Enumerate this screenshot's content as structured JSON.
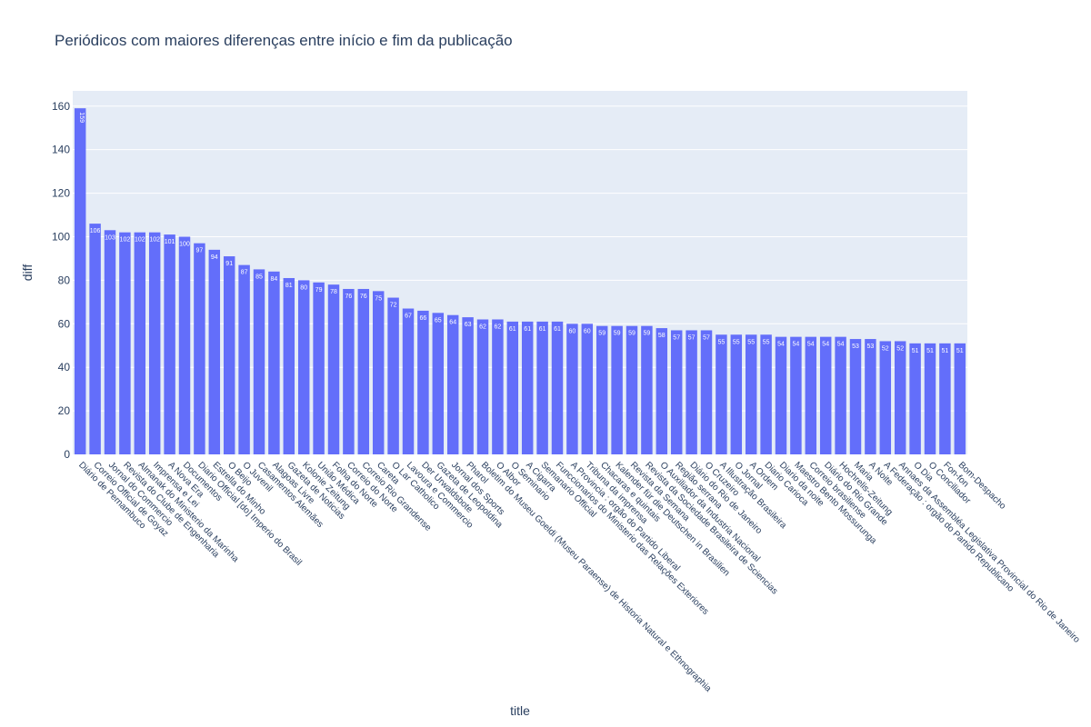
{
  "chart_data": {
    "type": "bar",
    "title": "Periódicos com maiores diferenças entre início e fim da publicação",
    "xlabel": "title",
    "ylabel": "diff",
    "ylim": [
      0,
      167
    ],
    "yticks": [
      0,
      20,
      40,
      60,
      80,
      100,
      120,
      140,
      160
    ],
    "grid": true,
    "bar_color": "#636efa",
    "plot_bg": "#e5ecf6",
    "categories": [
      "Diário de Pernambuco",
      "Correio Official de Goyaz",
      "Jornal do Commercio",
      "Revista do Clube de Engenharia",
      "Almanak do Ministerio da Marinha",
      "Imprensa e Lei",
      "A Nova Era",
      "Documentos",
      "Diario Official [do] Imperio do Brasil",
      "Estrella do Minho",
      "O Beijo",
      "O Juvenil",
      "Casamentos Alemães",
      "Alagoas Livre",
      "Gazeta de Noticias",
      "Kolonie Zeitung",
      "União Médica",
      "Folha do Norte",
      "Correio do Norte",
      "Correio Rio Grandense",
      "Careta",
      "O Lar Catholico",
      "Lavoura e Commercio",
      "Der Urwaldsbote",
      "Gazeta de Leopoldina",
      "Jornal dos Sports",
      "Pharol",
      "Boletim do Museu Goeldi (Museu Paraense) de Historia Natural e Ethnographia",
      "O Albor",
      "O Seminario",
      "A Cigarra",
      "Semanario Official",
      "Funccionarios do Ministerio das Relações Exteriores",
      "A Provincia : orgão do Partido Liberal",
      "Tribuna da imprensa",
      "Chacaras e quintais",
      "Kalender für die Deutschen in Brasilien",
      "Revista da Semana",
      "Revista da Sociedade Brasileira de Sciencias",
      "O Auxiliador da Industria Nacional",
      "Região serrana",
      "Diário do Rio de Janeiro",
      "O Cruzeiro",
      "A Illustração Brasileira",
      "O Jornal",
      "A Ordem",
      "Diario Carioca",
      "Diario da noite",
      "Maestro Bento Mossurunga",
      "Correio brasiliense",
      "Diário do Rio Grande",
      "Hochrelis-Zeitung",
      "Maria",
      "A Noite",
      "A Federação : orgão do Partido Republicano",
      "Annaes da Assembléa Legislativa Provincial do Rio de Janeiro",
      "O Dia",
      "O Conciliador",
      "Fon-fon",
      "Bom-Despacho"
    ],
    "values": [
      159,
      106,
      103,
      102,
      102,
      102,
      101,
      100,
      97,
      94,
      91,
      87,
      85,
      84,
      81,
      80,
      79,
      78,
      76,
      76,
      75,
      72,
      67,
      66,
      65,
      64,
      63,
      62,
      62,
      61,
      61,
      61,
      61,
      60,
      60,
      59,
      59,
      59,
      59,
      58,
      57,
      57,
      57,
      55,
      55,
      55,
      55,
      54,
      54,
      54,
      54,
      54,
      53,
      53,
      52,
      52,
      51,
      51,
      51,
      51
    ]
  }
}
